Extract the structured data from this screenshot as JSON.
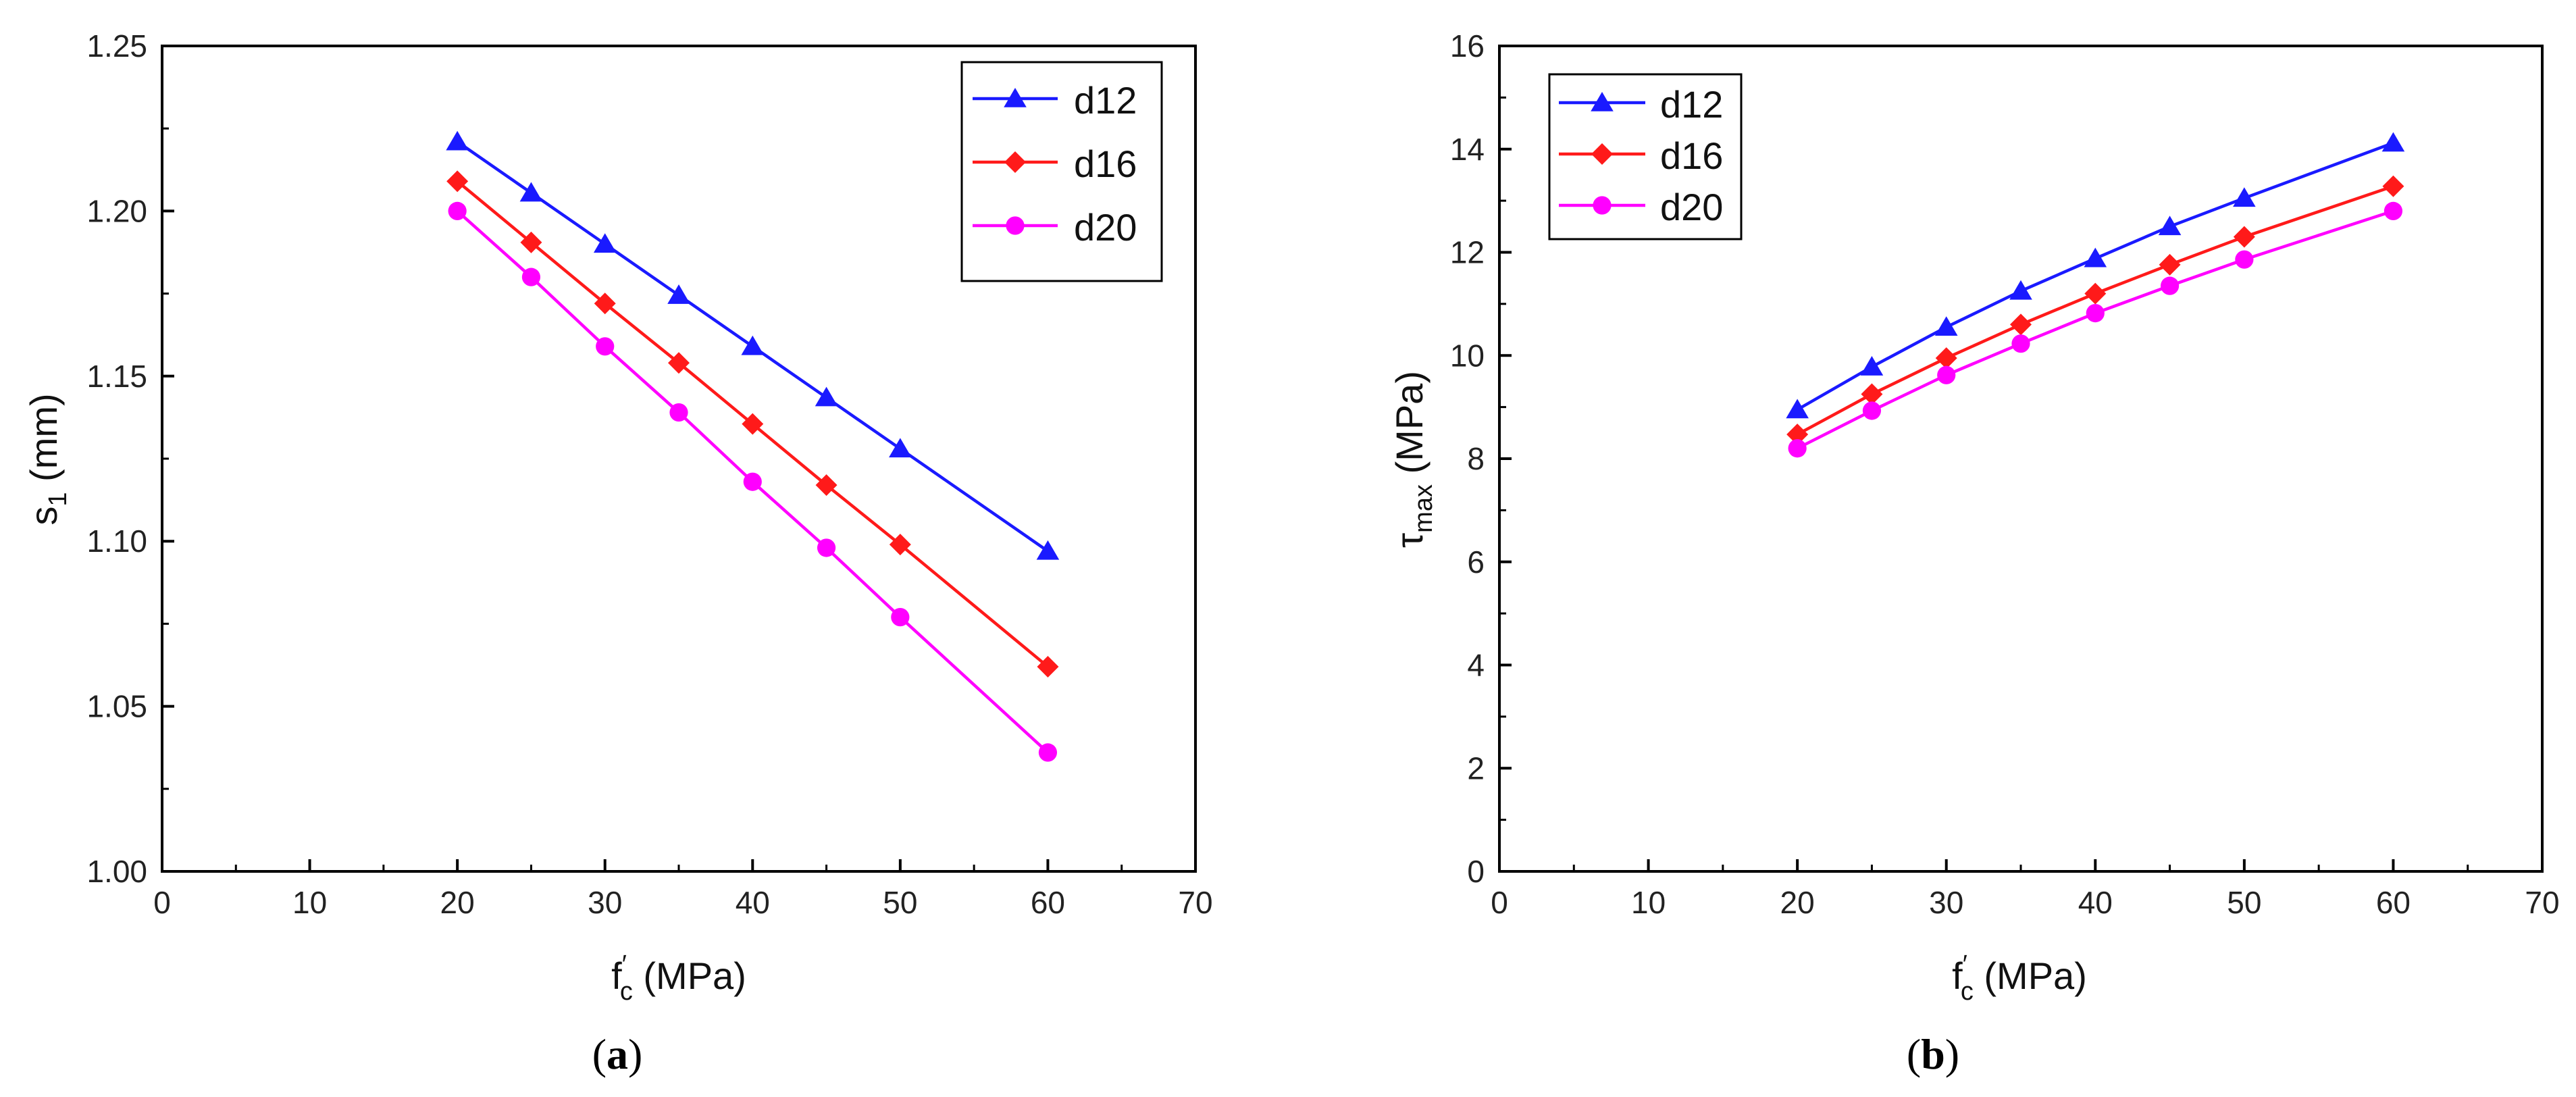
{
  "chart_data": [
    {
      "id": "a",
      "type": "line",
      "panel_label": {
        "open": "(",
        "letter": "a",
        "close": ")"
      },
      "xlabel": {
        "main": "f",
        "sup": "′",
        "sub": "c",
        "rest": " (MPa)"
      },
      "ylabel": {
        "main": "s",
        "sub": "1",
        "rest": " (mm)"
      },
      "xlim": [
        0,
        70
      ],
      "ylim": [
        1.0,
        1.25
      ],
      "xticks": [
        0,
        10,
        20,
        30,
        40,
        50,
        60,
        70
      ],
      "xtick_labels": [
        "0",
        "10",
        "20",
        "30",
        "40",
        "50",
        "60",
        "70"
      ],
      "yticks": [
        1.0,
        1.05,
        1.1,
        1.15,
        1.2,
        1.25
      ],
      "ytick_labels": [
        "1.00",
        "1.05",
        "1.10",
        "1.15",
        "1.20",
        "1.25"
      ],
      "legend_position": "top-right",
      "x": [
        20,
        25,
        30,
        35,
        40,
        45,
        50,
        60
      ],
      "series": [
        {
          "name": "d12",
          "color": "#1a1aff",
          "marker": "triangle",
          "values": [
            1.221,
            1.2055,
            1.19,
            1.1745,
            1.159,
            1.1435,
            1.128,
            1.097
          ]
        },
        {
          "name": "d16",
          "color": "#ff1a1a",
          "marker": "diamond",
          "values": [
            1.209,
            1.1905,
            1.172,
            1.154,
            1.1355,
            1.117,
            1.099,
            1.062
          ]
        },
        {
          "name": "d20",
          "color": "#ff00ff",
          "marker": "circle",
          "values": [
            1.2,
            1.18,
            1.159,
            1.139,
            1.118,
            1.098,
            1.077,
            1.036
          ]
        }
      ]
    },
    {
      "id": "b",
      "type": "line",
      "panel_label": {
        "open": "(",
        "letter": "b",
        "close": ")"
      },
      "xlabel": {
        "main": "f",
        "sup": "′",
        "sub": "c",
        "rest": " (MPa)"
      },
      "ylabel": {
        "main": "τ",
        "sub": "max",
        "rest": " (MPa)"
      },
      "xlim": [
        0,
        70
      ],
      "ylim": [
        0,
        16
      ],
      "xticks": [
        0,
        10,
        20,
        30,
        40,
        50,
        60,
        70
      ],
      "xtick_labels": [
        "0",
        "10",
        "20",
        "30",
        "40",
        "50",
        "60",
        "70"
      ],
      "yticks": [
        0,
        2,
        4,
        6,
        8,
        10,
        12,
        14,
        16
      ],
      "ytick_labels": [
        "0",
        "2",
        "4",
        "6",
        "8",
        "10",
        "12",
        "14",
        "16"
      ],
      "legend_position": "top-left",
      "x": [
        20,
        25,
        30,
        35,
        40,
        45,
        50,
        60
      ],
      "series": [
        {
          "name": "d12",
          "color": "#1a1aff",
          "marker": "triangle",
          "values": [
            8.95,
            9.78,
            10.55,
            11.25,
            11.88,
            12.5,
            13.05,
            14.12
          ]
        },
        {
          "name": "d16",
          "color": "#ff1a1a",
          "marker": "diamond",
          "values": [
            8.47,
            9.25,
            9.95,
            10.6,
            11.2,
            11.76,
            12.3,
            13.28
          ]
        },
        {
          "name": "d20",
          "color": "#ff00ff",
          "marker": "circle",
          "values": [
            8.2,
            8.93,
            9.62,
            10.23,
            10.82,
            11.35,
            11.86,
            12.8
          ]
        }
      ]
    }
  ]
}
